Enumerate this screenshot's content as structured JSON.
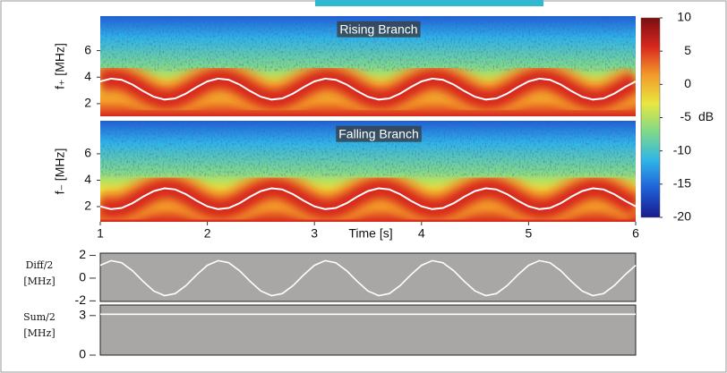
{
  "chart_data": [
    {
      "type": "spectrogram",
      "annotation": "Rising Branch",
      "ylabel": "f₊ [MHz]",
      "xlim": [
        1,
        6
      ],
      "ylim": [
        1.05,
        8.6
      ],
      "yticks": [
        2,
        4,
        6
      ],
      "x": [
        1,
        1.1,
        1.2,
        1.3,
        1.4,
        1.5,
        1.6,
        1.7,
        1.8,
        1.9,
        2,
        2.1,
        2.2,
        2.3,
        2.4,
        2.5,
        2.6,
        2.7,
        2.8,
        2.9,
        3,
        3.1,
        3.2,
        3.3,
        3.4,
        3.5,
        3.6,
        3.7,
        3.8,
        3.9,
        4,
        4.1,
        4.2,
        4.3,
        4.4,
        4.5,
        4.6,
        4.7,
        4.8,
        4.9,
        5,
        5.1,
        5.2,
        5.3,
        5.4,
        5.5,
        5.6,
        5.7,
        5.8,
        5.9,
        6
      ],
      "series": [
        {
          "color": "#ffffff",
          "values": [
            3.68,
            3.89,
            3.8,
            3.44,
            2.95,
            2.52,
            2.31,
            2.4,
            2.76,
            3.25,
            3.68,
            3.89,
            3.8,
            3.44,
            2.95,
            2.52,
            2.31,
            2.4,
            2.76,
            3.25,
            3.68,
            3.89,
            3.8,
            3.44,
            2.95,
            2.52,
            2.31,
            2.4,
            2.76,
            3.25,
            3.68,
            3.89,
            3.8,
            3.44,
            2.95,
            2.52,
            2.31,
            2.4,
            2.76,
            3.25,
            3.68,
            3.89,
            3.8,
            3.44,
            2.95,
            2.52,
            2.31,
            2.4,
            2.76,
            3.25,
            3.68
          ]
        }
      ],
      "colorbar": {
        "label": "dB",
        "clim": [
          -20,
          10
        ],
        "ticks": [
          10,
          5,
          0,
          -5,
          -10,
          -15,
          -20
        ],
        "colormap": [
          "#1a1a8c",
          "#1f5fd6",
          "#2fb5e8",
          "#7fd98a",
          "#e8e640",
          "#f39a2a",
          "#d7261e",
          "#7a0f12"
        ]
      }
    },
    {
      "type": "spectrogram",
      "annotation": "Falling Branch",
      "ylabel": "f₋ [MHz]",
      "xlabel": "Time [s]",
      "xlim": [
        1,
        6
      ],
      "xticks": [
        1,
        2,
        3,
        4,
        5,
        6
      ],
      "ylim": [
        0.85,
        8.5
      ],
      "yticks": [
        2,
        4,
        6
      ],
      "x": [
        1,
        1.1,
        1.2,
        1.3,
        1.4,
        1.5,
        1.6,
        1.7,
        1.8,
        1.9,
        2,
        2.1,
        2.2,
        2.3,
        2.4,
        2.5,
        2.6,
        2.7,
        2.8,
        2.9,
        3,
        3.1,
        3.2,
        3.3,
        3.4,
        3.5,
        3.6,
        3.7,
        3.8,
        3.9,
        4,
        4.1,
        4.2,
        4.3,
        4.4,
        4.5,
        4.6,
        4.7,
        4.8,
        4.9,
        5,
        5.1,
        5.2,
        5.3,
        5.4,
        5.5,
        5.6,
        5.7,
        5.8,
        5.9,
        6
      ],
      "series": [
        {
          "color": "#ffffff",
          "values": [
            2.02,
            1.81,
            1.9,
            2.26,
            2.75,
            3.18,
            3.39,
            3.3,
            2.94,
            2.45,
            2.02,
            1.81,
            1.9,
            2.26,
            2.75,
            3.18,
            3.39,
            3.3,
            2.94,
            2.45,
            2.02,
            1.81,
            1.9,
            2.26,
            2.75,
            3.18,
            3.39,
            3.3,
            2.94,
            2.45,
            2.02,
            1.81,
            1.9,
            2.26,
            2.75,
            3.18,
            3.39,
            3.3,
            2.94,
            2.45,
            2.02,
            1.81,
            1.9,
            2.26,
            2.75,
            3.18,
            3.39,
            3.3,
            2.94,
            2.45,
            2.02
          ]
        }
      ]
    },
    {
      "type": "line",
      "ylabel": [
        "Diff/2",
        "[MHz]"
      ],
      "background": "#a9a7a6",
      "xlim": [
        1,
        6
      ],
      "ylim": [
        -2.05,
        2.2
      ],
      "yticks": [
        2,
        0,
        -2
      ],
      "x": [
        1,
        1.1,
        1.2,
        1.3,
        1.4,
        1.5,
        1.6,
        1.7,
        1.8,
        1.9,
        2,
        2.1,
        2.2,
        2.3,
        2.4,
        2.5,
        2.6,
        2.7,
        2.8,
        2.9,
        3,
        3.1,
        3.2,
        3.3,
        3.4,
        3.5,
        3.6,
        3.7,
        3.8,
        3.9,
        4,
        4.1,
        4.2,
        4.3,
        4.4,
        4.5,
        4.6,
        4.7,
        4.8,
        4.9,
        5,
        5.1,
        5.2,
        5.3,
        5.4,
        5.5,
        5.6,
        5.7,
        5.8,
        5.9,
        6
      ],
      "series": [
        {
          "color": "#ffffff",
          "values": [
            1.13,
            1.54,
            1.36,
            0.66,
            -0.29,
            -1.13,
            -1.54,
            -1.36,
            -0.66,
            0.29,
            1.13,
            1.54,
            1.36,
            0.66,
            -0.29,
            -1.13,
            -1.54,
            -1.36,
            -0.66,
            0.29,
            1.13,
            1.54,
            1.36,
            0.66,
            -0.29,
            -1.13,
            -1.54,
            -1.36,
            -0.66,
            0.29,
            1.13,
            1.54,
            1.36,
            0.66,
            -0.29,
            -1.13,
            -1.54,
            -1.36,
            -0.66,
            0.29,
            1.13,
            1.54,
            1.36,
            0.66,
            -0.29,
            -1.13,
            -1.54,
            -1.36,
            -0.66,
            0.29,
            1.13
          ]
        }
      ]
    },
    {
      "type": "line",
      "ylabel": [
        "Sum/2",
        "[MHz]"
      ],
      "background": "#a9a7a6",
      "xlim": [
        1,
        6
      ],
      "ylim": [
        0,
        3.8
      ],
      "yticks": [
        0,
        3
      ],
      "x": [
        1,
        6
      ],
      "series": [
        {
          "color": "#ffffff",
          "values": [
            3.1,
            3.1
          ]
        }
      ]
    }
  ]
}
